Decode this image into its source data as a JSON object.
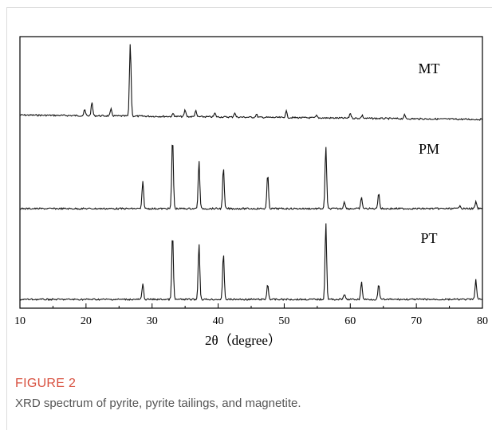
{
  "chart_data": {
    "type": "line",
    "xlabel": "2θ（degree）",
    "ylabel": "",
    "xlim": [
      10,
      80
    ],
    "x_ticks": [
      10,
      20,
      30,
      40,
      50,
      60,
      70,
      80
    ],
    "grid": false,
    "series": [
      {
        "name": "MT",
        "baseline": 0.06,
        "peaks": [
          {
            "x": 19.8,
            "y": 0.08
          },
          {
            "x": 20.9,
            "y": 0.18
          },
          {
            "x": 23.8,
            "y": 0.09
          },
          {
            "x": 26.7,
            "y": 1.0
          },
          {
            "x": 33.2,
            "y": 0.04
          },
          {
            "x": 35.0,
            "y": 0.09
          },
          {
            "x": 36.6,
            "y": 0.08
          },
          {
            "x": 39.5,
            "y": 0.05
          },
          {
            "x": 42.5,
            "y": 0.06
          },
          {
            "x": 45.8,
            "y": 0.04
          },
          {
            "x": 50.3,
            "y": 0.09
          },
          {
            "x": 54.9,
            "y": 0.03
          },
          {
            "x": 60.0,
            "y": 0.07
          },
          {
            "x": 61.8,
            "y": 0.04
          },
          {
            "x": 68.2,
            "y": 0.05
          }
        ]
      },
      {
        "name": "PM",
        "baseline": 0.0,
        "peaks": [
          {
            "x": 28.6,
            "y": 0.37
          },
          {
            "x": 33.1,
            "y": 0.98
          },
          {
            "x": 37.1,
            "y": 0.65
          },
          {
            "x": 40.8,
            "y": 0.56
          },
          {
            "x": 47.5,
            "y": 0.47
          },
          {
            "x": 56.3,
            "y": 0.86
          },
          {
            "x": 59.1,
            "y": 0.1
          },
          {
            "x": 61.7,
            "y": 0.15
          },
          {
            "x": 64.3,
            "y": 0.22
          },
          {
            "x": 76.6,
            "y": 0.05
          },
          {
            "x": 79.0,
            "y": 0.09
          }
        ]
      },
      {
        "name": "PT",
        "baseline": 0.0,
        "peaks": [
          {
            "x": 28.6,
            "y": 0.2
          },
          {
            "x": 33.1,
            "y": 0.86
          },
          {
            "x": 37.1,
            "y": 0.74
          },
          {
            "x": 40.8,
            "y": 0.6
          },
          {
            "x": 47.5,
            "y": 0.2
          },
          {
            "x": 56.3,
            "y": 1.0
          },
          {
            "x": 59.1,
            "y": 0.07
          },
          {
            "x": 61.7,
            "y": 0.23
          },
          {
            "x": 64.3,
            "y": 0.19
          },
          {
            "x": 79.0,
            "y": 0.26
          }
        ]
      }
    ]
  },
  "caption": {
    "title": "FIGURE 2",
    "text": "XRD spectrum of pyrite, pyrite tailings, and magnetite."
  }
}
